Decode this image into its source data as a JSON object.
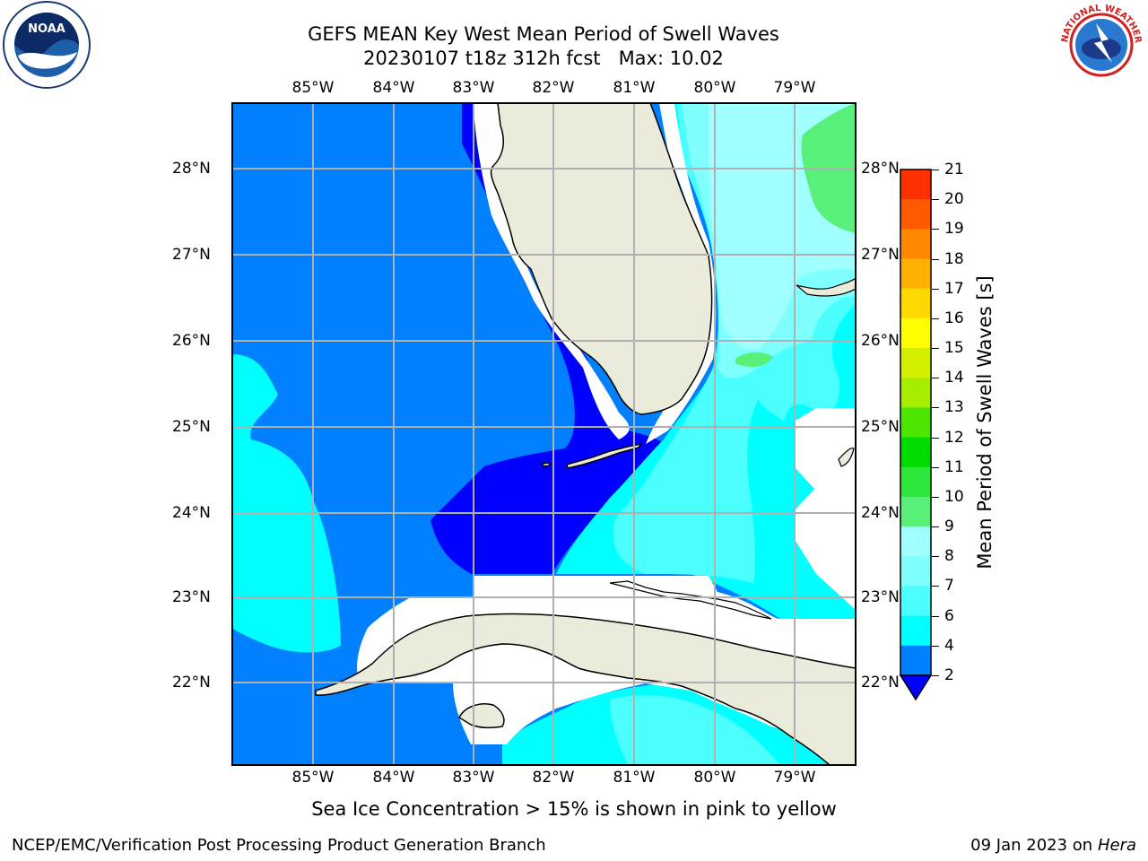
{
  "title": {
    "line1": "GEFS MEAN Key West Mean Period of Swell Waves",
    "line2": "20230107 t18z 312h fcst   Max: 10.02"
  },
  "map": {
    "lon_labels": [
      "85°W",
      "84°W",
      "83°W",
      "82°W",
      "81°W",
      "80°W",
      "79°W"
    ],
    "lat_labels": [
      "28°N",
      "27°N",
      "26°N",
      "25°N",
      "24°N",
      "23°N",
      "22°N"
    ],
    "extent": {
      "lon_min": -86.0,
      "lon_max": -78.3,
      "lat_min": 21.0,
      "lat_max": 28.75
    }
  },
  "colorbar": {
    "label": "Mean Period of Swell Waves [s]",
    "ticks": [
      "21",
      "20",
      "19",
      "18",
      "17",
      "16",
      "15",
      "14",
      "13",
      "12",
      "11",
      "10",
      "9",
      "8",
      "7",
      "6",
      "4",
      "2"
    ],
    "colors": {
      "band_2_4": "#0080ff",
      "band_4_6": "#00ffff",
      "band_6_7": "#4cffff",
      "band_7_8": "#80ffff",
      "band_8_9": "#a0ffff",
      "band_9_10": "#59f07a",
      "band_10_11": "#2fe63a",
      "band_11_12": "#00dc00",
      "band_12_13": "#4ce600",
      "band_13_14": "#a8ec00",
      "band_14_15": "#d2f000",
      "band_15_16": "#ffff00",
      "band_16_17": "#ffd800",
      "band_17_18": "#ffb000",
      "band_18_19": "#ff8800",
      "band_19_20": "#ff5a00",
      "band_20_21": "#ff3000",
      "band_21_plus": "#ff0000",
      "under_2": "#0000ff"
    }
  },
  "land_color": "#ebebdb",
  "ice_note": "Sea Ice Concentration > 15% is shown in pink to yellow",
  "footer": {
    "left": "NCEP/EMC/Verification Post Processing Product Generation Branch",
    "right_prefix": "09 Jan 2023 on ",
    "right_host": "Hera"
  },
  "logos": {
    "noaa_text": "NOAA",
    "nws_ring_text": "NATIONAL WEATHER SERVICE"
  }
}
